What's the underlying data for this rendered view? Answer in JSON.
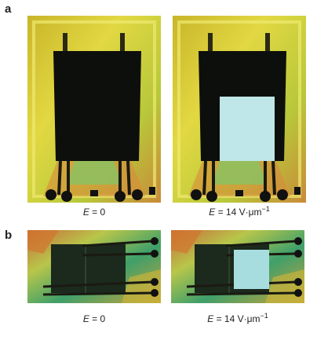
{
  "figure": {
    "panels": [
      {
        "label": "a",
        "images": [
          {
            "caption": {
              "symbol": "E",
              "text": " = 0"
            }
          },
          {
            "caption": {
              "symbol": "E",
              "text": " = 14 V·μm",
              "sup": "−1"
            }
          }
        ]
      },
      {
        "label": "b",
        "images": [
          {
            "caption": {
              "symbol": "E",
              "text": " = 0"
            }
          },
          {
            "caption": {
              "symbol": "E",
              "text": " = 14 V·μm",
              "sup": "−1"
            }
          }
        ]
      }
    ]
  }
}
